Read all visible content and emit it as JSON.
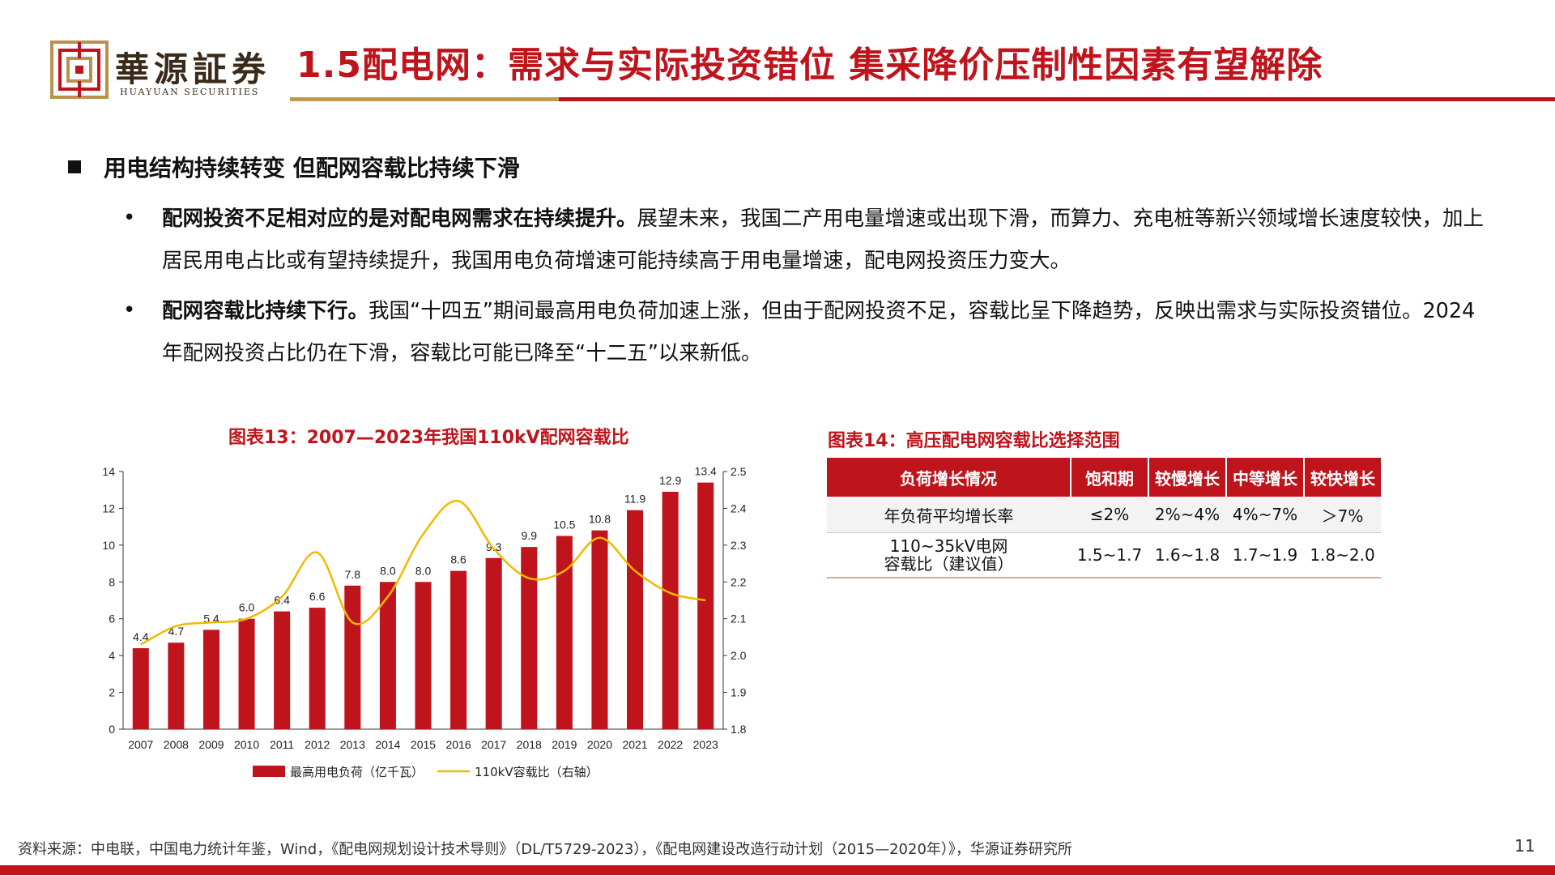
{
  "brand": {
    "name": "華源証券",
    "sub": "HUAYUAN SECURITIES"
  },
  "title": "1.5配电网：需求与实际投资错位 集采降价压制性因素有望解除",
  "section": "用电结构持续转变 但配网容载比持续下滑",
  "bullets": [
    {
      "lead": "配网投资不足相对应的是对配电网需求在持续提升。",
      "text": "展望未来，我国二产用电量增速或出现下滑，而算力、充电桩等新兴领域增长速度较快，加上居民用电占比或有望持续提升，我国用电负荷增速可能持续高于用电量增速，配电网投资压力变大。"
    },
    {
      "lead": "配网容载比持续下行。",
      "text": "我国“十四五”期间最高用电负荷加速上涨，但由于配网投资不足，容载比呈下降趋势，反映出需求与实际投资错位。2024年配网投资占比仍在下滑，容载比可能已降至“十二五”以来新低。"
    }
  ],
  "bullet_char": "•",
  "chart_data": {
    "type": "bar",
    "title": "图表13：2007—2023年我国110kV配网容载比",
    "categories": [
      "2007",
      "2008",
      "2009",
      "2010",
      "2011",
      "2012",
      "2013",
      "2014",
      "2015",
      "2016",
      "2017",
      "2018",
      "2019",
      "2020",
      "2021",
      "2022",
      "2023"
    ],
    "series": [
      {
        "name": "最高用电负荷（亿千瓦）",
        "type": "bar",
        "axis": "left",
        "values": [
          4.4,
          4.7,
          5.4,
          6.0,
          6.4,
          6.6,
          7.8,
          8.0,
          8.0,
          8.6,
          9.3,
          9.9,
          10.5,
          10.8,
          11.9,
          12.9,
          13.4
        ],
        "labels": [
          "4.4",
          "4.7",
          "5.4",
          "6.0",
          "6.4",
          "6.6",
          "7.8",
          "8.0",
          "8.0",
          "8.6",
          "9.3",
          "9.9",
          "10.5",
          "10.8",
          "11.9",
          "12.9",
          "13.4"
        ],
        "color": "#c0141c"
      },
      {
        "name": "110kV容载比（右轴）",
        "type": "line",
        "axis": "right",
        "values": [
          2.03,
          2.08,
          2.09,
          2.1,
          2.16,
          2.28,
          2.09,
          2.16,
          2.33,
          2.42,
          2.29,
          2.21,
          2.23,
          2.32,
          2.23,
          2.17,
          2.15
        ],
        "color": "#f2b900"
      }
    ],
    "ylim_left": [
      0,
      14
    ],
    "yticks_left": [
      "0",
      "2",
      "4",
      "6",
      "8",
      "10",
      "12",
      "14"
    ],
    "ylim_right": [
      1.8,
      2.5
    ],
    "yticks_right": [
      "1.8",
      "1.9",
      "2.0",
      "2.1",
      "2.2",
      "2.3",
      "2.4",
      "2.5"
    ],
    "legend_position": "bottom"
  },
  "table": {
    "title": "图表14：高压配电网容载比选择范围",
    "headers": [
      "负荷增长情况",
      "饱和期",
      "较慢增长",
      "中等增长",
      "较快增长"
    ],
    "rows": [
      [
        "年负荷平均增长率",
        "≤2%",
        "2%~4%",
        "4%~7%",
        "＞7%"
      ],
      [
        "110~35kV电网容载比（建议值）",
        "1.5~1.7",
        "1.6~1.8",
        "1.7~1.9",
        "1.8~2.0"
      ]
    ]
  },
  "colors": {
    "accent": "#c0141c",
    "gold": "#c29a4c",
    "line": "#f2b900"
  },
  "source": "资料来源：中电联，中国电力统计年鉴，Wind，《配电网规划设计技术导则》（DL/T5729-2023），《配电网建设改造行动计划（2015—2020年）》，华源证券研究所",
  "page_number": "11"
}
